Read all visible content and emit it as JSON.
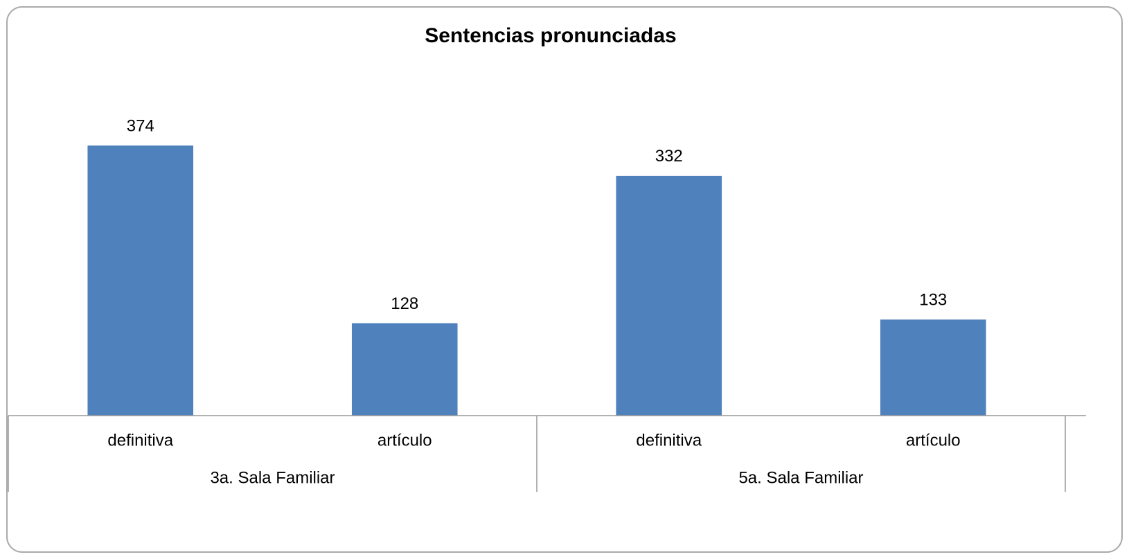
{
  "chart_data": {
    "type": "bar",
    "title": "Sentencias pronunciadas",
    "categories": [
      "definitiva",
      "artículo",
      "definitiva",
      "artículo"
    ],
    "groups": [
      "3a. Sala Familiar",
      "5a. Sala Familiar"
    ],
    "values": [
      374,
      128,
      332,
      133
    ],
    "color": "#4f81bd",
    "ylim": [
      0,
      400
    ],
    "grid": false
  }
}
